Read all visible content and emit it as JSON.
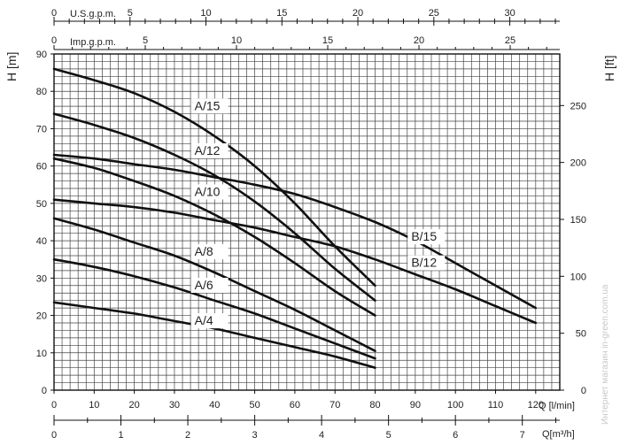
{
  "chart_data": {
    "type": "line",
    "title": "",
    "y_left": {
      "label": "H [m]",
      "range": [
        0,
        90
      ],
      "ticks": [
        0,
        10,
        20,
        30,
        40,
        50,
        60,
        70,
        80,
        90
      ]
    },
    "y_right": {
      "label": "H [ft]",
      "range": [
        0,
        295.3
      ],
      "ticks": [
        0,
        50,
        100,
        150,
        200,
        250
      ]
    },
    "x_bottom": {
      "label": "Q [l/min]",
      "range": [
        0,
        126
      ],
      "ticks": [
        0,
        10,
        20,
        30,
        40,
        50,
        60,
        70,
        80,
        90,
        100,
        110,
        120
      ]
    },
    "x_bottom2": {
      "label": "Q[m³/h]",
      "range": [
        0,
        7.56
      ],
      "ticks": [
        0,
        1,
        2,
        3,
        4,
        5,
        6,
        7
      ]
    },
    "x_top": {
      "label": "U.S.g.p.m.",
      "ticks": [
        0,
        5,
        10,
        15,
        20,
        25,
        30
      ],
      "l_per_min_per_unit": 3.785
    },
    "x_top2": {
      "label": "Imp.g.p.m.",
      "ticks": [
        0,
        5,
        10,
        15,
        20,
        25
      ],
      "l_per_min_per_unit": 4.546
    },
    "grid": true,
    "series": [
      {
        "name": "A/15",
        "points": [
          [
            0,
            86
          ],
          [
            10,
            83
          ],
          [
            20,
            79.5
          ],
          [
            30,
            74.5
          ],
          [
            40,
            68
          ],
          [
            50,
            60
          ],
          [
            60,
            50
          ],
          [
            70,
            38.5
          ],
          [
            80,
            28
          ]
        ],
        "label_at": [
          35,
          75
        ]
      },
      {
        "name": "A/12",
        "points": [
          [
            0,
            74
          ],
          [
            10,
            71
          ],
          [
            20,
            67.5
          ],
          [
            30,
            63
          ],
          [
            40,
            57.5
          ],
          [
            50,
            50.5
          ],
          [
            60,
            42
          ],
          [
            70,
            32.5
          ],
          [
            80,
            24
          ]
        ],
        "label_at": [
          35,
          63
        ]
      },
      {
        "name": "A/10",
        "points": [
          [
            0,
            62
          ],
          [
            10,
            59.5
          ],
          [
            20,
            56
          ],
          [
            30,
            52
          ],
          [
            40,
            47
          ],
          [
            50,
            41
          ],
          [
            60,
            34
          ],
          [
            70,
            26.5
          ],
          [
            80,
            20
          ]
        ],
        "label_at": [
          35,
          52
        ]
      },
      {
        "name": "A/8",
        "points": [
          [
            0,
            46
          ],
          [
            10,
            43
          ],
          [
            20,
            39.5
          ],
          [
            30,
            36
          ],
          [
            40,
            31.5
          ],
          [
            50,
            26.5
          ],
          [
            60,
            21.5
          ],
          [
            70,
            16
          ],
          [
            80,
            10.5
          ]
        ],
        "label_at": [
          35,
          36
        ]
      },
      {
        "name": "A/6",
        "points": [
          [
            0,
            35
          ],
          [
            10,
            33
          ],
          [
            20,
            30.5
          ],
          [
            30,
            27.5
          ],
          [
            40,
            24
          ],
          [
            50,
            20.5
          ],
          [
            60,
            16.5
          ],
          [
            70,
            12.5
          ],
          [
            80,
            8.5
          ]
        ],
        "label_at": [
          35,
          27
        ]
      },
      {
        "name": "A/4",
        "points": [
          [
            0,
            23.5
          ],
          [
            10,
            22
          ],
          [
            20,
            20.5
          ],
          [
            30,
            18.5
          ],
          [
            40,
            16.5
          ],
          [
            50,
            14
          ],
          [
            60,
            11.5
          ],
          [
            70,
            9
          ],
          [
            80,
            6
          ]
        ],
        "label_at": [
          35,
          17.5
        ]
      },
      {
        "name": "B/15",
        "points": [
          [
            0,
            63
          ],
          [
            10,
            62
          ],
          [
            20,
            60.5
          ],
          [
            30,
            59
          ],
          [
            40,
            57
          ],
          [
            50,
            55
          ],
          [
            60,
            52.5
          ],
          [
            70,
            49
          ],
          [
            80,
            45
          ],
          [
            90,
            40
          ],
          [
            100,
            34
          ],
          [
            110,
            28
          ],
          [
            120,
            22
          ]
        ],
        "label_at": [
          89,
          40
        ]
      },
      {
        "name": "B/12",
        "points": [
          [
            0,
            51
          ],
          [
            10,
            50
          ],
          [
            20,
            49
          ],
          [
            30,
            47.5
          ],
          [
            40,
            45.5
          ],
          [
            50,
            43.5
          ],
          [
            60,
            41
          ],
          [
            70,
            38.5
          ],
          [
            80,
            35
          ],
          [
            90,
            31
          ],
          [
            100,
            27
          ],
          [
            110,
            22.5
          ],
          [
            120,
            18
          ]
        ],
        "label_at": [
          89,
          33
        ]
      }
    ]
  },
  "watermark": "Интернет магазин in-green.com.ua"
}
